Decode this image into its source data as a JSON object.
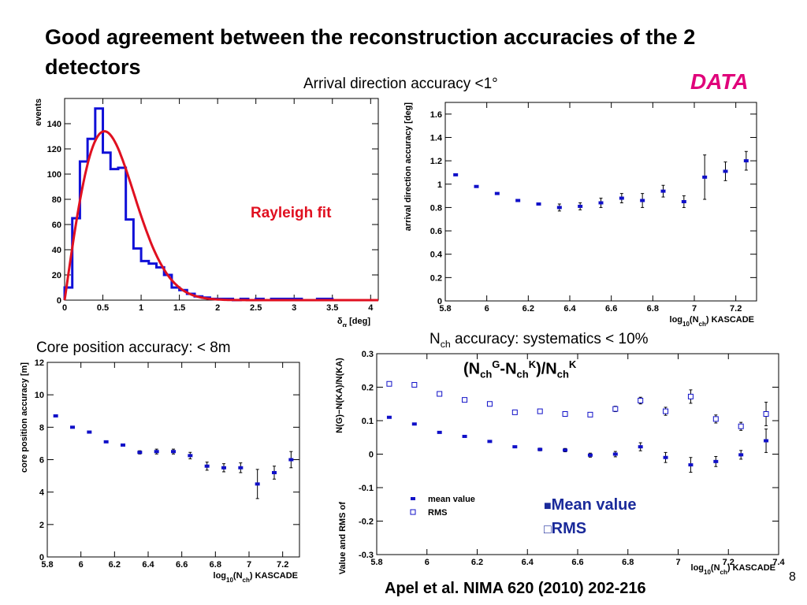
{
  "slide": {
    "title": "Good agreement between the reconstruction accuracies of the 2 detectors",
    "data_tag": "DATA",
    "arrival_caption": "Arrival direction accuracy <1°",
    "core_caption": "Core position accuracy: < 8m",
    "nch_caption": {
      "n": "N",
      "ch": "ch",
      "rest": " accuracy: systematics < 10%"
    },
    "nch_formula": {
      "a": "(N",
      "ch1": "ch",
      "g": "G",
      "b": "-N",
      "ch2": "ch",
      "k1": "K",
      "c": ")/N",
      "ch3": "ch",
      "k2": "K"
    },
    "rayleigh_label": "Rayleigh fit",
    "mean_value_legend": "Mean value",
    "rms_legend": "RMS",
    "footer": "Apel et al. NIMA 620 (2010) 202-216",
    "page_number": "8"
  },
  "chart_data": [
    {
      "id": "histogram",
      "type": "histogram",
      "ylabel": "events",
      "xlabel": "δα [deg]",
      "xlim": [
        0,
        4.1
      ],
      "ylim": [
        0,
        160
      ],
      "xticks": [
        "0",
        "0.5",
        "1",
        "1.5",
        "2",
        "2.5",
        "3",
        "3.5",
        "4"
      ],
      "yticks": [
        "0",
        "20",
        "40",
        "60",
        "80",
        "100",
        "120",
        "140"
      ],
      "bin_width": 0.1,
      "counts": [
        10,
        65,
        110,
        128,
        152,
        117,
        104,
        105,
        64,
        41,
        31,
        29,
        26,
        20,
        10,
        8,
        5,
        3,
        2,
        1,
        1,
        1,
        0,
        1,
        0,
        1,
        0,
        1,
        1,
        1,
        1,
        0,
        0,
        1,
        1,
        0,
        0,
        0,
        0,
        0,
        0
      ],
      "fit": {
        "name": "Rayleigh fit",
        "color": "#e01020",
        "amplitude": 134,
        "sigma": 0.52
      },
      "hist_color": "#1010d8"
    },
    {
      "id": "arrival",
      "type": "scatter",
      "ylabel": "arrival direction accuracy [deg]",
      "xlabel": "log10(Nch) KASCADE",
      "xlim": [
        5.8,
        7.3
      ],
      "ylim": [
        0,
        1.7
      ],
      "xticks": [
        "5.8",
        "6",
        "6.2",
        "6.4",
        "6.6",
        "6.8",
        "7",
        "7.2"
      ],
      "yticks": [
        "0",
        "0.2",
        "0.4",
        "0.6",
        "0.8",
        "1",
        "1.2",
        "1.4",
        "1.6"
      ],
      "points": [
        {
          "x": 5.85,
          "y": 1.08,
          "err": 0
        },
        {
          "x": 5.95,
          "y": 0.98,
          "err": 0
        },
        {
          "x": 6.05,
          "y": 0.92,
          "err": 0
        },
        {
          "x": 6.15,
          "y": 0.86,
          "err": 0
        },
        {
          "x": 6.25,
          "y": 0.83,
          "err": 0
        },
        {
          "x": 6.35,
          "y": 0.8,
          "err": 0.03
        },
        {
          "x": 6.45,
          "y": 0.81,
          "err": 0.03
        },
        {
          "x": 6.55,
          "y": 0.84,
          "err": 0.04
        },
        {
          "x": 6.65,
          "y": 0.88,
          "err": 0.04
        },
        {
          "x": 6.75,
          "y": 0.86,
          "err": 0.06
        },
        {
          "x": 6.85,
          "y": 0.94,
          "err": 0.05
        },
        {
          "x": 6.95,
          "y": 0.85,
          "err": 0.05
        },
        {
          "x": 7.05,
          "y": 1.06,
          "err": 0.19
        },
        {
          "x": 7.15,
          "y": 1.11,
          "err": 0.08
        },
        {
          "x": 7.25,
          "y": 1.2,
          "err": 0.08
        }
      ]
    },
    {
      "id": "core",
      "type": "scatter",
      "ylabel": "core position accuracy [m]",
      "xlabel": "log10(Nch) KASCADE",
      "xlim": [
        5.8,
        7.3
      ],
      "ylim": [
        0,
        12
      ],
      "xticks": [
        "5.8",
        "6",
        "6.2",
        "6.4",
        "6.6",
        "6.8",
        "7",
        "7.2"
      ],
      "yticks": [
        "0",
        "2",
        "4",
        "6",
        "8",
        "10",
        "12"
      ],
      "points": [
        {
          "x": 5.85,
          "y": 8.7,
          "err": 0
        },
        {
          "x": 5.95,
          "y": 8.0,
          "err": 0
        },
        {
          "x": 6.05,
          "y": 7.7,
          "err": 0
        },
        {
          "x": 6.15,
          "y": 7.1,
          "err": 0
        },
        {
          "x": 6.25,
          "y": 6.9,
          "err": 0
        },
        {
          "x": 6.35,
          "y": 6.45,
          "err": 0.1
        },
        {
          "x": 6.45,
          "y": 6.5,
          "err": 0.15
        },
        {
          "x": 6.55,
          "y": 6.5,
          "err": 0.15
        },
        {
          "x": 6.65,
          "y": 6.25,
          "err": 0.2
        },
        {
          "x": 6.75,
          "y": 5.6,
          "err": 0.25
        },
        {
          "x": 6.85,
          "y": 5.5,
          "err": 0.25
        },
        {
          "x": 6.95,
          "y": 5.5,
          "err": 0.3
        },
        {
          "x": 7.05,
          "y": 4.5,
          "err": 0.9
        },
        {
          "x": 7.15,
          "y": 5.2,
          "err": 0.4
        },
        {
          "x": 7.25,
          "y": 6.0,
          "err": 0.5
        }
      ]
    },
    {
      "id": "nch",
      "type": "scatter",
      "ylabel": "Mean Value and RMS of (Nch^Grande - Nch^KA)/Nch^KA",
      "xlabel": "log10(Nch) KASCADE",
      "xlim": [
        5.8,
        7.4
      ],
      "ylim": [
        -0.3,
        0.3
      ],
      "xticks": [
        "5.8",
        "6",
        "6.2",
        "6.4",
        "6.6",
        "6.8",
        "7",
        "7.2",
        "7.4"
      ],
      "yticks": [
        "-0.3",
        "-0.2",
        "-0.1",
        "0",
        "0.1",
        "0.2",
        "0.3"
      ],
      "legend": [
        {
          "name": "mean value",
          "marker": "filled"
        },
        {
          "name": "RMS",
          "marker": "open"
        }
      ],
      "series": [
        {
          "name": "mean value",
          "marker": "filled",
          "points": [
            {
              "x": 5.85,
              "y": 0.11,
              "err": 0
            },
            {
              "x": 5.95,
              "y": 0.09,
              "err": 0
            },
            {
              "x": 6.05,
              "y": 0.065,
              "err": 0
            },
            {
              "x": 6.15,
              "y": 0.053,
              "err": 0
            },
            {
              "x": 6.25,
              "y": 0.038,
              "err": 0
            },
            {
              "x": 6.35,
              "y": 0.022,
              "err": 0
            },
            {
              "x": 6.45,
              "y": 0.014,
              "err": 0.004
            },
            {
              "x": 6.55,
              "y": 0.012,
              "err": 0.005
            },
            {
              "x": 6.65,
              "y": -0.003,
              "err": 0.006
            },
            {
              "x": 6.75,
              "y": 0.0,
              "err": 0.008
            },
            {
              "x": 6.85,
              "y": 0.022,
              "err": 0.012
            },
            {
              "x": 6.95,
              "y": -0.01,
              "err": 0.015
            },
            {
              "x": 7.05,
              "y": -0.032,
              "err": 0.022
            },
            {
              "x": 7.15,
              "y": -0.022,
              "err": 0.015
            },
            {
              "x": 7.25,
              "y": -0.002,
              "err": 0.013
            },
            {
              "x": 7.35,
              "y": 0.04,
              "err": 0.035
            }
          ]
        },
        {
          "name": "RMS",
          "marker": "open",
          "points": [
            {
              "x": 5.85,
              "y": 0.21,
              "err": 0
            },
            {
              "x": 5.95,
              "y": 0.207,
              "err": 0
            },
            {
              "x": 6.05,
              "y": 0.18,
              "err": 0
            },
            {
              "x": 6.15,
              "y": 0.162,
              "err": 0
            },
            {
              "x": 6.25,
              "y": 0.15,
              "err": 0
            },
            {
              "x": 6.35,
              "y": 0.125,
              "err": 0
            },
            {
              "x": 6.45,
              "y": 0.128,
              "err": 0.004
            },
            {
              "x": 6.55,
              "y": 0.12,
              "err": 0.005
            },
            {
              "x": 6.65,
              "y": 0.118,
              "err": 0.006
            },
            {
              "x": 6.75,
              "y": 0.135,
              "err": 0.008
            },
            {
              "x": 6.85,
              "y": 0.16,
              "err": 0.01
            },
            {
              "x": 6.95,
              "y": 0.128,
              "err": 0.012
            },
            {
              "x": 7.05,
              "y": 0.172,
              "err": 0.02
            },
            {
              "x": 7.15,
              "y": 0.105,
              "err": 0.012
            },
            {
              "x": 7.25,
              "y": 0.083,
              "err": 0.012
            },
            {
              "x": 7.35,
              "y": 0.12,
              "err": 0.035
            }
          ]
        }
      ]
    }
  ]
}
